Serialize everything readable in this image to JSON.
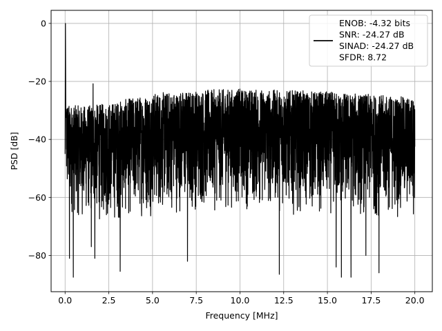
{
  "chart_data": {
    "type": "line",
    "title": "",
    "xlabel": "Frequency [MHz]",
    "ylabel": "PSD [dB]",
    "xlim": [
      -0.8,
      21.0
    ],
    "ylim": [
      -92.5,
      4.5
    ],
    "x_ticks": [
      0.0,
      2.5,
      5.0,
      7.5,
      10.0,
      12.5,
      15.0,
      17.5,
      20.0
    ],
    "x_tick_labels": [
      "0.0",
      "2.5",
      "5.0",
      "7.5",
      "10.0",
      "12.5",
      "15.0",
      "17.5",
      "20.0"
    ],
    "y_ticks": [
      0,
      -20,
      -40,
      -60,
      -80
    ],
    "y_tick_labels": [
      "0",
      "−20",
      "−40",
      "−60",
      "−80"
    ],
    "grid": true,
    "legend_position": "top-right",
    "line_color": "#000000",
    "series": [
      {
        "name": "ENOB: -4.32 bits\nSNR: -24.27 dB\nSINAD: -24.27 dB\nSFDR: 8.72",
        "peak": {
          "x": 0.02,
          "y": 0.0
        },
        "spur": {
          "x": 1.6,
          "y": -20.8
        },
        "upper_envelope": [
          [
            0.0,
            -25
          ],
          [
            0.2,
            -28
          ],
          [
            1.0,
            -28.5
          ],
          [
            2.5,
            -27.5
          ],
          [
            5.0,
            -24
          ],
          [
            7.5,
            -23
          ],
          [
            10.0,
            -22.5
          ],
          [
            12.5,
            -23
          ],
          [
            15.0,
            -23.5
          ],
          [
            17.5,
            -24.5
          ],
          [
            20.0,
            -25.5
          ]
        ],
        "lower_envelope": [
          [
            0.0,
            -64
          ],
          [
            0.5,
            -68
          ],
          [
            2.5,
            -70
          ],
          [
            5.0,
            -67
          ],
          [
            7.5,
            -66
          ],
          [
            10.0,
            -65
          ],
          [
            12.5,
            -66
          ],
          [
            15.0,
            -67
          ],
          [
            17.5,
            -68
          ],
          [
            20.0,
            -68
          ]
        ],
        "deep_dips": [
          [
            0.25,
            -81
          ],
          [
            0.47,
            -87.5
          ],
          [
            1.5,
            -77
          ],
          [
            1.7,
            -81
          ],
          [
            3.15,
            -85.5
          ],
          [
            7.0,
            -82
          ],
          [
            12.25,
            -86.5
          ],
          [
            15.5,
            -84
          ],
          [
            15.8,
            -87.5
          ],
          [
            16.35,
            -87.5
          ],
          [
            17.95,
            -86
          ],
          [
            17.2,
            -80
          ]
        ]
      }
    ]
  }
}
